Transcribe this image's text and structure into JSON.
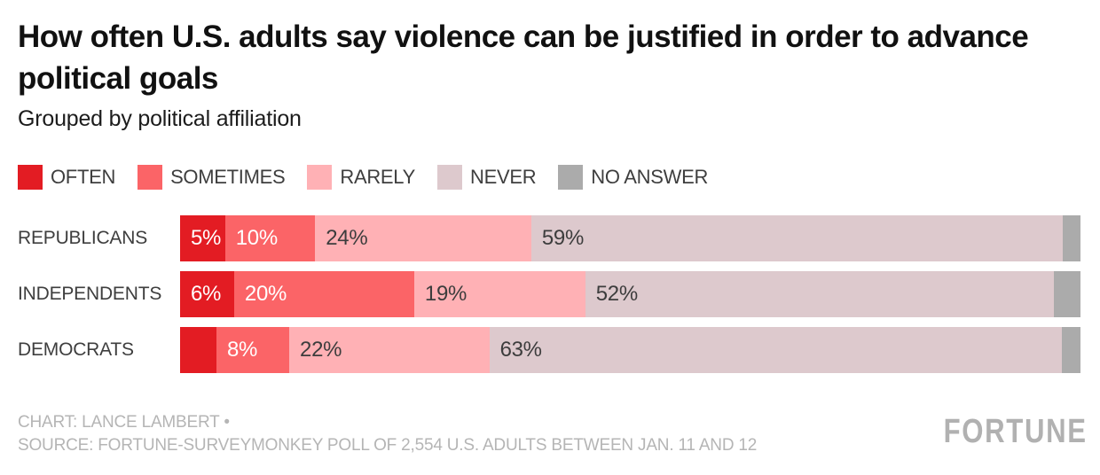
{
  "header": {
    "title": "How often U.S. adults say violence can be justified in order to advance political goals",
    "subtitle": "Grouped by political affiliation"
  },
  "legend": [
    {
      "label": "OFTEN",
      "color": "#e31c23"
    },
    {
      "label": "SOMETIMES",
      "color": "#fb6467"
    },
    {
      "label": "RARELY",
      "color": "#ffb1b5"
    },
    {
      "label": "NEVER",
      "color": "#ddc9cd"
    },
    {
      "label": "NO ANSWER",
      "color": "#ababab"
    }
  ],
  "chart_data": {
    "type": "bar",
    "stacked": true,
    "orientation": "horizontal",
    "unit": "%",
    "title": "How often U.S. adults say violence can be justified in order to advance political goals",
    "subtitle": "Grouped by political affiliation",
    "legend_position": "top",
    "axes_visible": false,
    "grid": false,
    "categories": [
      "REPUBLICANS",
      "INDEPENDENTS",
      "DEMOCRATS"
    ],
    "series": [
      {
        "name": "OFTEN",
        "color": "#e31c23",
        "text_color": "#ffffff",
        "values": [
          5,
          6,
          4
        ],
        "labels": [
          "5%",
          "6%",
          ""
        ]
      },
      {
        "name": "SOMETIMES",
        "color": "#fb6467",
        "text_color": "#ffffff",
        "values": [
          10,
          20,
          8
        ],
        "labels": [
          "10%",
          "20%",
          "8%"
        ]
      },
      {
        "name": "RARELY",
        "color": "#ffb1b5",
        "text_color": "#3d3d3d",
        "values": [
          24,
          19,
          22
        ],
        "labels": [
          "24%",
          "19%",
          "22%"
        ]
      },
      {
        "name": "NEVER",
        "color": "#ddc9cd",
        "text_color": "#3d3d3d",
        "values": [
          59,
          52,
          63
        ],
        "labels": [
          "59%",
          "52%",
          "63%"
        ]
      },
      {
        "name": "NO ANSWER",
        "color": "#ababab",
        "text_color": "#3d3d3d",
        "values": [
          2,
          3,
          2
        ],
        "labels": [
          "",
          "",
          ""
        ]
      }
    ]
  },
  "footer": {
    "credit": "CHART: LANCE LAMBERT •",
    "source": "SOURCE: FORTUNE-SURVEYMONKEY POLL OF 2,554 U.S. ADULTS BETWEEN JAN. 11 AND 12",
    "brand": "FORTUNE"
  }
}
